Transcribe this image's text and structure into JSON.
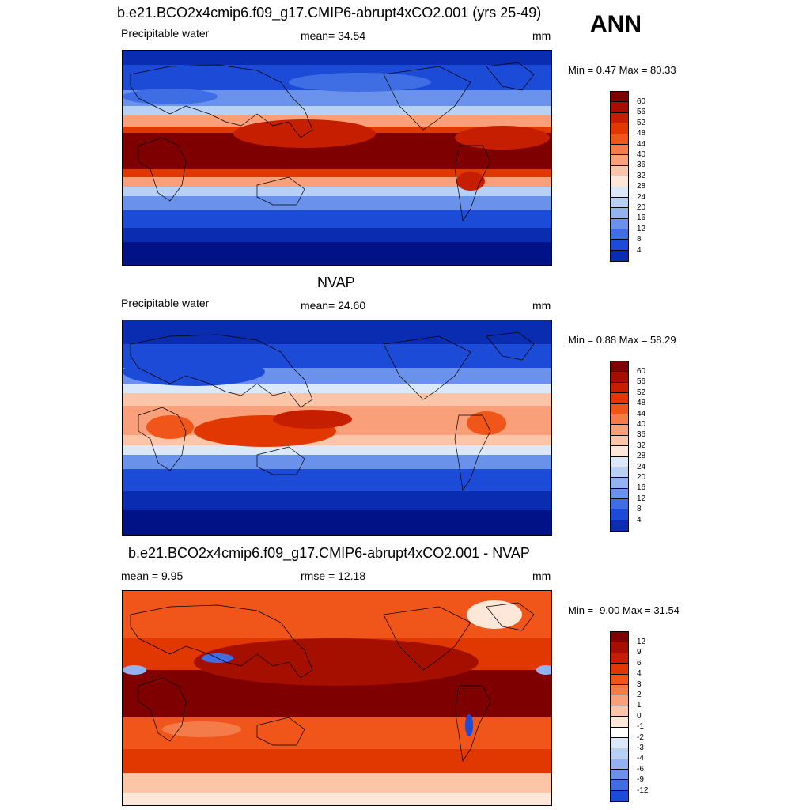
{
  "panel1": {
    "title": "b.e21.BCO2x4cmip6.f09_g17.CMIP6-abrupt4xCO2.001 (yrs 25-49)",
    "left": "Precipitable water",
    "center": "mean=  34.54",
    "units": "mm",
    "minmax": "Min =   0.47 Max =  80.33",
    "ticks": [
      "60",
      "56",
      "52",
      "48",
      "44",
      "40",
      "36",
      "32",
      "28",
      "24",
      "20",
      "16",
      "12",
      "8",
      "4"
    ]
  },
  "season": "ANN",
  "panel2": {
    "title": "NVAP",
    "left": "Precipitable water",
    "center": "mean=  24.60",
    "units": "mm",
    "minmax": "Min =   0.88 Max =  58.29",
    "ticks": [
      "60",
      "56",
      "52",
      "48",
      "44",
      "40",
      "36",
      "32",
      "28",
      "24",
      "20",
      "16",
      "12",
      "8",
      "4"
    ]
  },
  "panel3": {
    "title": "b.e21.BCO2x4cmip6.f09_g17.CMIP6-abrupt4xCO2.001 - NVAP",
    "left": "mean =   9.95",
    "center": "rmse =  12.18",
    "units": "mm",
    "minmax": "Min =  -9.00 Max =  31.54",
    "ticks": [
      "12",
      "9",
      "6",
      "4",
      "3",
      "2",
      "1",
      "0",
      "-1",
      "-2",
      "-3",
      "-4",
      "-6",
      "-9",
      "-12"
    ]
  },
  "colors": {
    "abs_scale": [
      "#7f0000",
      "#a50f00",
      "#c51e00",
      "#e03800",
      "#f0561a",
      "#f47b4a",
      "#f9a07a",
      "#fcc5a8",
      "#fde7d8",
      "#dbe8f9",
      "#b9d0f5",
      "#92b3ef",
      "#6a92ea",
      "#3f6ee4",
      "#1c4bd7",
      "#0a2cb0",
      "#001285"
    ],
    "diff_scale": [
      "#7f0000",
      "#a50f00",
      "#c51e00",
      "#e03800",
      "#f0561a",
      "#f47b4a",
      "#f9a07a",
      "#fcc5a8",
      "#fde7d8",
      "#ffffff",
      "#dbe8f9",
      "#b9d0f5",
      "#92b3ef",
      "#6a92ea",
      "#3f6ee4",
      "#1c4bd7",
      "#0a2cb0",
      "#001285"
    ]
  }
}
